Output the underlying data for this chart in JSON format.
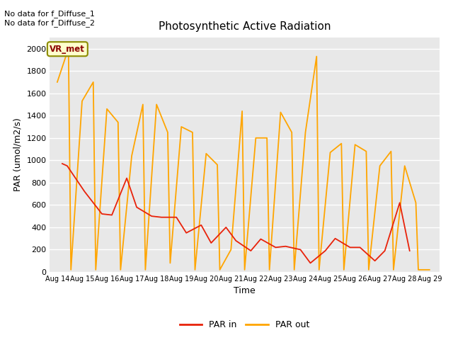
{
  "title": "Photosynthetic Active Radiation",
  "xlabel": "Time",
  "ylabel": "PAR (umol/m2/s)",
  "annotation_top": "No data for f_Diffuse_1\nNo data for f_Diffuse_2",
  "legend_box_label": "VR_met",
  "ylim": [
    0,
    2100
  ],
  "yticks": [
    0,
    200,
    400,
    600,
    800,
    1000,
    1200,
    1400,
    1600,
    1800,
    2000
  ],
  "x_labels": [
    "Aug 14",
    "Aug 15",
    "Aug 16",
    "Aug 17",
    "Aug 18",
    "Aug 19",
    "Aug 20",
    "Aug 21",
    "Aug 22",
    "Aug 23",
    "Aug 24",
    "Aug 25",
    "Aug 26",
    "Aug 27",
    "Aug 28",
    "Aug 29"
  ],
  "par_in_color": "#e8220a",
  "par_out_color": "#ffa500",
  "background_color": "#e8e8e8",
  "grid_color": "white",
  "legend_box_bg": "#ffffcc",
  "legend_box_border": "#8B8B00",
  "par_out_x": [
    0.0,
    0.45,
    0.55,
    1.0,
    1.45,
    1.55,
    2.0,
    2.45,
    2.55,
    3.0,
    3.45,
    3.55,
    4.0,
    4.45,
    4.55,
    5.0,
    5.45,
    5.55,
    6.0,
    6.45,
    6.55,
    7.0,
    7.45,
    7.55,
    8.0,
    8.45,
    8.55,
    9.0,
    9.45,
    9.55,
    10.0,
    10.45,
    10.55,
    11.0,
    11.45,
    11.55,
    12.0,
    12.45,
    12.55,
    13.0,
    13.45,
    13.55,
    14.0,
    14.45,
    14.55,
    15.0
  ],
  "par_out_y": [
    1700,
    2000,
    20,
    1530,
    1700,
    20,
    1460,
    1340,
    20,
    1040,
    1500,
    20,
    1500,
    1250,
    80,
    1300,
    1250,
    20,
    1060,
    960,
    20,
    200,
    1440,
    20,
    1200,
    1200,
    20,
    1430,
    1250,
    20,
    1250,
    1930,
    20,
    1070,
    1150,
    20,
    1140,
    1080,
    20,
    950,
    1080,
    20,
    950,
    620,
    20,
    20
  ],
  "par_in_x": [
    0.2,
    0.4,
    1.1,
    1.8,
    2.2,
    2.8,
    3.2,
    3.8,
    4.2,
    4.8,
    5.2,
    5.8,
    6.2,
    6.8,
    7.2,
    7.8,
    8.2,
    8.8,
    9.2,
    9.8,
    10.2,
    10.8,
    11.2,
    11.8,
    12.2,
    12.8,
    13.2,
    13.8,
    14.2
  ],
  "par_in_y": [
    970,
    950,
    720,
    520,
    510,
    840,
    580,
    500,
    490,
    490,
    350,
    420,
    260,
    400,
    280,
    190,
    295,
    220,
    230,
    200,
    80,
    190,
    300,
    220,
    220,
    100,
    190,
    620,
    190
  ]
}
